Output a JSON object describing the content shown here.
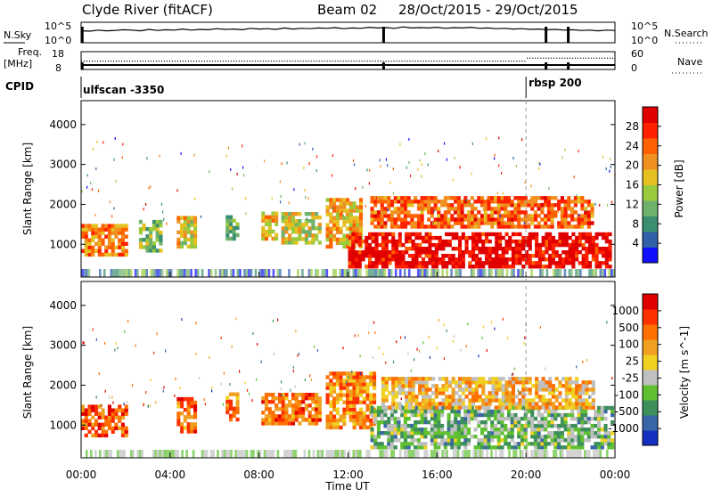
{
  "header": {
    "station": "Clyde River (fitACF)",
    "beam": "Beam 02",
    "date_range": "28/Oct/2015 - 29/Oct/2015"
  },
  "nsky": {
    "left_label": "N.Sky",
    "right_label": "N.Search",
    "left_ticks": [
      "10^5",
      "10^0"
    ],
    "right_ticks": [
      "10^5",
      "10^0"
    ],
    "sky_series": [
      3.1,
      3.0,
      3.3,
      3.1,
      3.2,
      3.4,
      3.3,
      3.1,
      3.5,
      3.2,
      3.4,
      3.3,
      3.6,
      3.3,
      3.5,
      3.4,
      3.7,
      3.5,
      3.6,
      3.4,
      3.8,
      3.6,
      3.7,
      3.5,
      3.9,
      3.6,
      3.8,
      3.7,
      3.9,
      3.8,
      4.0,
      3.7,
      3.9,
      3.8,
      4.1,
      3.9,
      4.0,
      3.8,
      4.2,
      3.9,
      4.0,
      3.9,
      4.1,
      3.8,
      4.0,
      3.9,
      4.1,
      3.8,
      3.9,
      3.7,
      3.8,
      3.6,
      3.7,
      3.5,
      3.6,
      3.4,
      3.5,
      3.3,
      3.4,
      3.2,
      3.3,
      3.1,
      3.3,
      3.2
    ],
    "search_drops_hours": [
      0.05,
      13.6,
      20.9,
      21.9
    ]
  },
  "freq": {
    "left_label": "Freq.",
    "left_unit": "[MHz]",
    "right_label": "Nave",
    "left_ticks": [
      "18",
      "8"
    ],
    "right_ticks": [
      "60",
      "0"
    ],
    "freq_mhz": 10.5,
    "nave_before": 30,
    "nave_after": 40,
    "nave_change_hour": 20.0
  },
  "cpid": {
    "label": "CPID",
    "programs": [
      {
        "name": "ulfscan -3350",
        "start_hour": 0
      },
      {
        "name": "rbsp 200",
        "start_hour": 20.0
      }
    ]
  },
  "chart_data": [
    {
      "type": "heatmap",
      "title": "Power",
      "xlabel": "Time UT",
      "ylabel": "Slant Range [km]",
      "xlim_hours": [
        0,
        24
      ],
      "ylim_km": [
        180,
        4600
      ],
      "y_ticks": [
        1000,
        2000,
        3000,
        4000
      ],
      "x_ticks": [
        "00:00",
        "04:00",
        "08:00",
        "12:00",
        "16:00",
        "20:00",
        "00:00"
      ],
      "colorbar": {
        "label": "Power [dB]",
        "ticks": [
          "28",
          "24",
          "20",
          "16",
          "12",
          "8",
          "4"
        ],
        "colors": [
          "#1010ff",
          "#3060a8",
          "#3a8f70",
          "#6fb06a",
          "#9acb3c",
          "#e6c020",
          "#f09020",
          "#ff6000",
          "#ff2000",
          "#e00000"
        ]
      },
      "bands": [
        {
          "t0": 0.0,
          "t1": 2.0,
          "r0": 700,
          "r1": 1500,
          "level": 0.7
        },
        {
          "t0": 2.6,
          "t1": 3.5,
          "r0": 800,
          "r1": 1600,
          "level": 0.4
        },
        {
          "t0": 4.3,
          "t1": 5.2,
          "r0": 900,
          "r1": 1700,
          "level": 0.55
        },
        {
          "t0": 6.5,
          "t1": 7.0,
          "r0": 1100,
          "r1": 1700,
          "level": 0.4
        },
        {
          "t0": 8.1,
          "t1": 8.8,
          "r0": 1100,
          "r1": 1800,
          "level": 0.55
        },
        {
          "t0": 9.0,
          "t1": 10.8,
          "r0": 1000,
          "r1": 1800,
          "level": 0.5
        },
        {
          "t0": 11.0,
          "t1": 12.6,
          "r0": 900,
          "r1": 2100,
          "level": 0.6
        },
        {
          "t0": 12.0,
          "t1": 23.8,
          "r0": 400,
          "r1": 1300,
          "level": 0.95
        },
        {
          "t0": 13.0,
          "t1": 23.0,
          "r0": 1400,
          "r1": 2200,
          "level": 0.75
        }
      ]
    },
    {
      "type": "heatmap",
      "title": "Velocity",
      "xlabel": "Time UT",
      "ylabel": "Slant Range [km]",
      "xlim_hours": [
        0,
        24
      ],
      "ylim_km": [
        180,
        4600
      ],
      "y_ticks": [
        1000,
        2000,
        3000,
        4000
      ],
      "x_ticks": [
        "00:00",
        "04:00",
        "08:00",
        "12:00",
        "16:00",
        "20:00",
        "00:00"
      ],
      "colorbar": {
        "label": "Velocity [m s^-1]",
        "ticks": [
          "1000",
          "500",
          "100",
          "25",
          "-25",
          "-100",
          "-500",
          "-1000"
        ],
        "colors": [
          "#1530c0",
          "#3a66a8",
          "#3d8f5c",
          "#60c030",
          "#c0c0c0",
          "#f0d020",
          "#f0a020",
          "#ff7000",
          "#ff3000",
          "#e00000"
        ]
      },
      "bands": [
        {
          "t0": 0.0,
          "t1": 2.0,
          "r0": 700,
          "r1": 1500,
          "level": 0.78
        },
        {
          "t0": 4.3,
          "t1": 5.2,
          "r0": 800,
          "r1": 1700,
          "level": 0.75
        },
        {
          "t0": 6.5,
          "t1": 7.0,
          "r0": 1100,
          "r1": 1800,
          "level": 0.72
        },
        {
          "t0": 8.1,
          "t1": 10.8,
          "r0": 1000,
          "r1": 1800,
          "level": 0.75
        },
        {
          "t0": 11.0,
          "t1": 13.2,
          "r0": 900,
          "r1": 2300,
          "level": 0.7
        },
        {
          "t0": 13.0,
          "t1": 23.8,
          "r0": 400,
          "r1": 1400,
          "level": 0.35
        },
        {
          "t0": 13.5,
          "t1": 23.0,
          "r0": 1400,
          "r1": 2200,
          "level": 0.6
        }
      ]
    }
  ],
  "marker_hour": 20.0
}
